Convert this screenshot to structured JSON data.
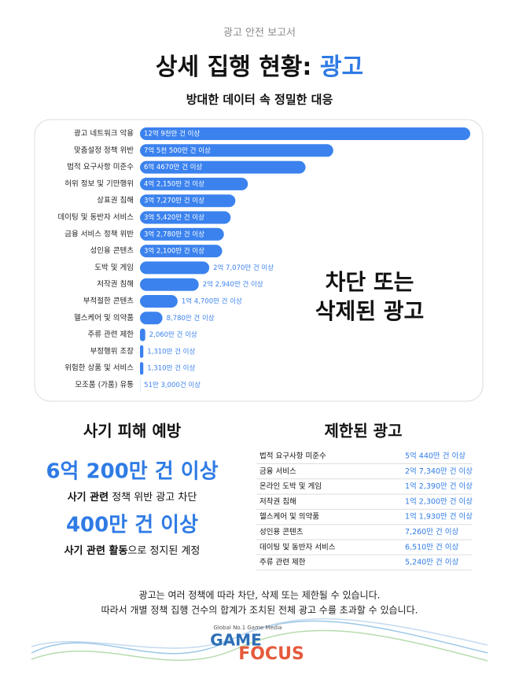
{
  "header": {
    "kicker": "광고 안전 보고서",
    "title": "상세 집행 현황:",
    "title_highlight": "광고",
    "subtitle": "방대한 데이터 속 정밀한 대응"
  },
  "chart_data": {
    "type": "bar",
    "orientation": "horizontal",
    "color": "#3b82ee",
    "categories": [
      "광고 네트워크 악용",
      "맞춤설정 정책 위반",
      "법적 요구사항 미준수",
      "허위 정보 및 기만행위",
      "상표권 침해",
      "데이팅 및 동반자 서비스",
      "금융 서비스 정책 위반",
      "성인용 콘텐츠",
      "도박 및 게임",
      "저작권 침해",
      "부적절한 콘텐츠",
      "헬스케어 및 의약품",
      "주류 관련 제한",
      "부정행위 조장",
      "위험한 상품 및 서비스",
      "모조품 (가품) 유통"
    ],
    "values": [
      1290000000,
      755000000,
      646700000,
      421500000,
      372700000,
      354200000,
      327800000,
      321000000,
      270700000,
      229400000,
      147000000,
      87800000,
      20600000,
      13100000,
      13100000,
      513000
    ],
    "value_labels": [
      "12억 9천만 건 이상",
      "7억 5천 500만 건 이상",
      "6억 4670만 건 이상",
      "4억 2,150만 건 이상",
      "3억 7,270만 건 이상",
      "3억 5,420만 건 이상",
      "3억 2,780만 건 이상",
      "3억 2,100만 건 이상",
      "2억 7,070만 건 이상",
      "2억 2,940만 건 이상",
      "1억 4,700만 건 이상",
      "8,780만 건 이상",
      "2,060만 건 이상",
      "1,310만 건 이상",
      "1,310만 건 이상",
      "51만 3,000건 이상"
    ],
    "annotation": [
      "차단 또는",
      "삭제된 광고"
    ]
  },
  "scam": {
    "heading": "사기 피해 예방",
    "stats": [
      {
        "figure": "6억 200만 건 이상",
        "caption_bold": "사기 관련",
        "caption": " 정책 위반 광고 차단"
      },
      {
        "figure": "400만 건 이상",
        "caption_bold": "사기 관련 활동",
        "caption": "으로 정지된 계정"
      }
    ]
  },
  "restricted": {
    "heading": "제한된 광고",
    "rows": [
      [
        "법적 요구사항 미준수",
        "5억 440만 건 이상"
      ],
      [
        "금융 서비스",
        "2억 7,340만 건 이상"
      ],
      [
        "온라인 도박 및 게임",
        "1억 2,390만 건 이상"
      ],
      [
        "저작권 침해",
        "1억 2,300만 건 이상"
      ],
      [
        "헬스케어 및 의약품",
        "1억 1,930만 건 이상"
      ],
      [
        "성인용 콘텐츠",
        "7,260만 건 이상"
      ],
      [
        "데이팅 및 동반자 서비스",
        "6,510만 건 이상"
      ],
      [
        "주류 관련 제한",
        "5,240만 건 이상"
      ]
    ]
  },
  "footer": {
    "lines": [
      "광고는 여러 정책에 따라 차단, 삭제 또는 제한될 수 있습니다.",
      "따라서 개별 정책 집행 건수의 합계가 조치된 전체 광고 수를 초과할 수 있습니다."
    ]
  },
  "logo": {
    "tagline": "Global No.1 Game Media",
    "top": "GAME",
    "bottom": "FOCUS"
  }
}
